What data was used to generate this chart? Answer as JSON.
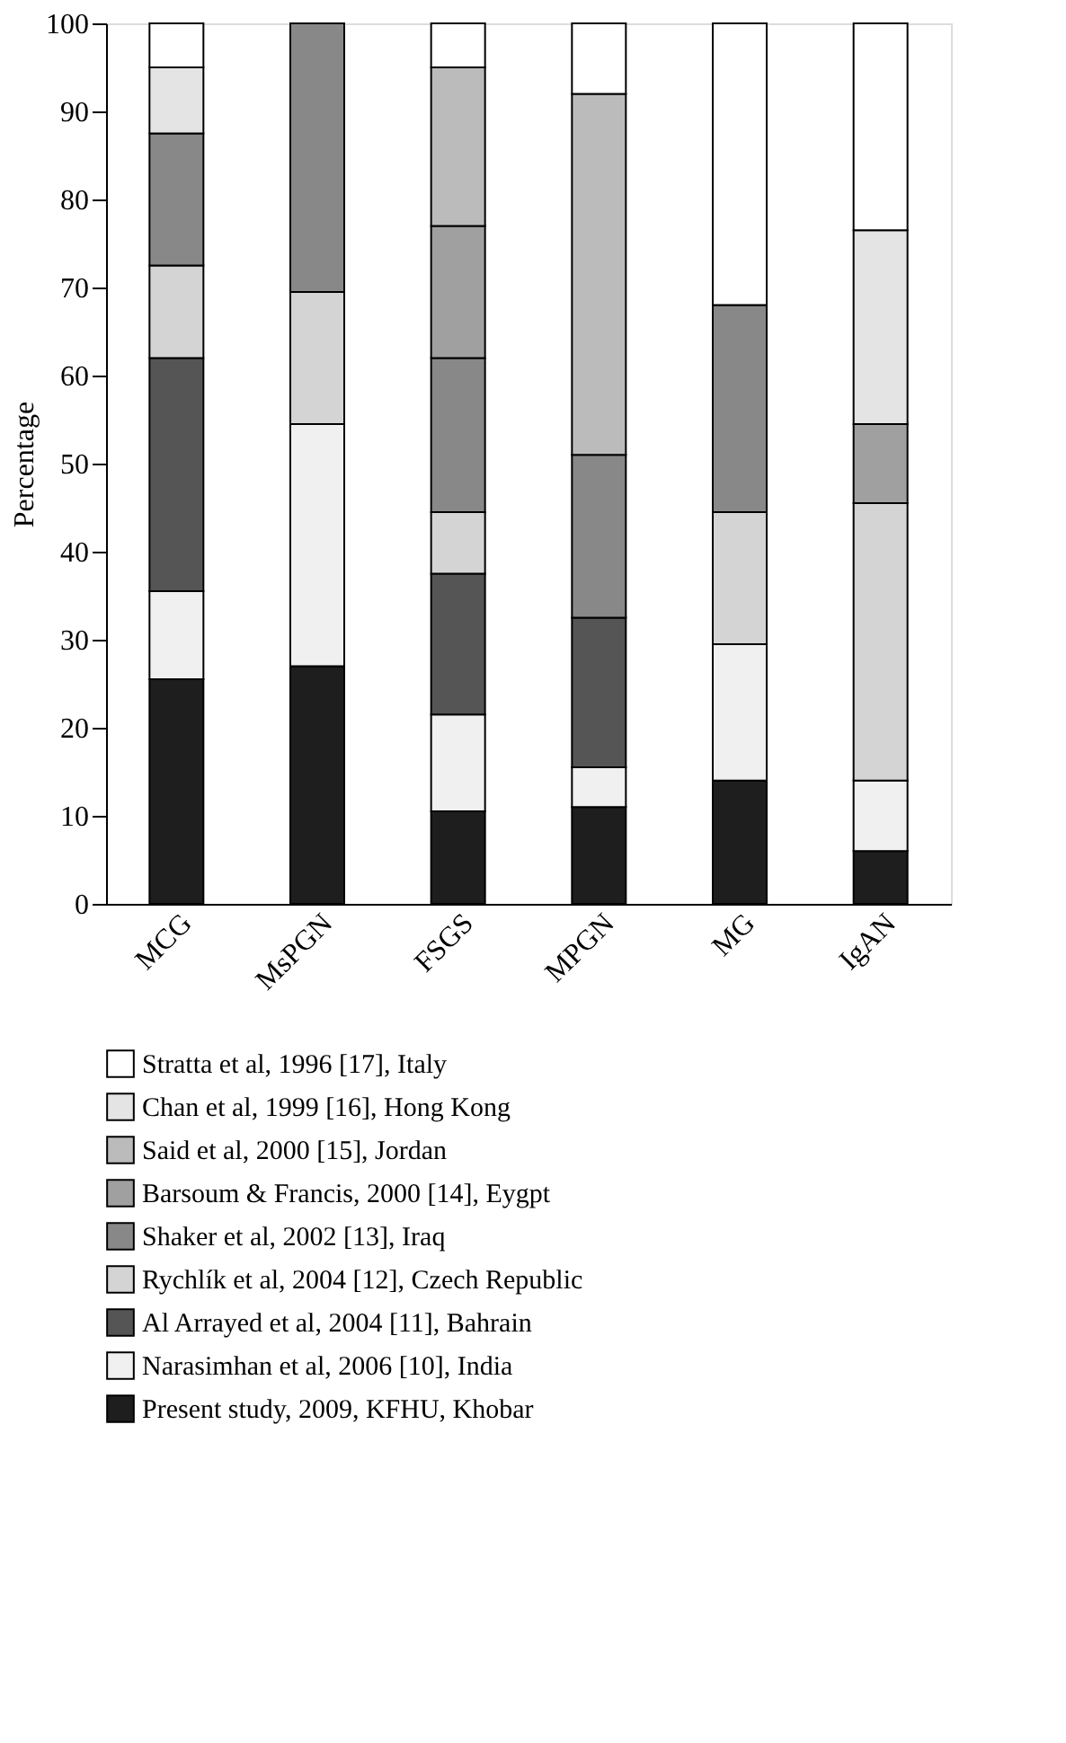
{
  "chart_data": {
    "type": "bar",
    "stacked": true,
    "ylabel": "Percentage",
    "categories": [
      "MCG",
      "MsPGN",
      "FSGS",
      "MPGN",
      "MG",
      "IgAN"
    ],
    "ylim": [
      0,
      100
    ],
    "yticks": [
      0,
      10,
      20,
      30,
      40,
      50,
      60,
      70,
      80,
      90,
      100
    ],
    "grid": false,
    "legend": "bottom",
    "series": [
      {
        "name": "Present study, 2009, KFHU, Khobar",
        "color": "#1e1e1e",
        "values": [
          25.5,
          27,
          10.5,
          11,
          14,
          6
        ]
      },
      {
        "name": "Narasimhan et al, 2006 [10], India",
        "color": "#f0f0f0",
        "values": [
          10,
          27.5,
          11,
          4.5,
          15.5,
          8
        ]
      },
      {
        "name": "Al Arrayed et al, 2004 [11], Bahrain",
        "color": "#555555",
        "values": [
          26.5,
          null,
          16,
          17,
          null,
          null
        ]
      },
      {
        "name": "Rychlík et al, 2004 [12], Czech Republic",
        "color": "#d4d4d4",
        "values": [
          10.5,
          15,
          7,
          null,
          15,
          31.5
        ]
      },
      {
        "name": "Shaker et al, 2002 [13], Iraq",
        "color": "#888888",
        "values": [
          15,
          30.5,
          17.5,
          18.5,
          23.5,
          null
        ]
      },
      {
        "name": "Barsoum & Francis, 2000 [14], Eygpt",
        "color": "#a0a0a0",
        "values": [
          null,
          null,
          15,
          null,
          null,
          9
        ]
      },
      {
        "name": "Said et al, 2000 [15], Jordan",
        "color": "#bbbbbb",
        "values": [
          null,
          null,
          18,
          41,
          null,
          null
        ]
      },
      {
        "name": "Chan et al, 1999 [16], Hong Kong",
        "color": "#e4e4e4",
        "values": [
          7.5,
          null,
          null,
          null,
          null,
          22
        ]
      },
      {
        "name": "Stratta et al, 1996 [17], Italy",
        "color": "#ffffff",
        "values": [
          5,
          null,
          5,
          8,
          32,
          23.5
        ]
      }
    ]
  }
}
